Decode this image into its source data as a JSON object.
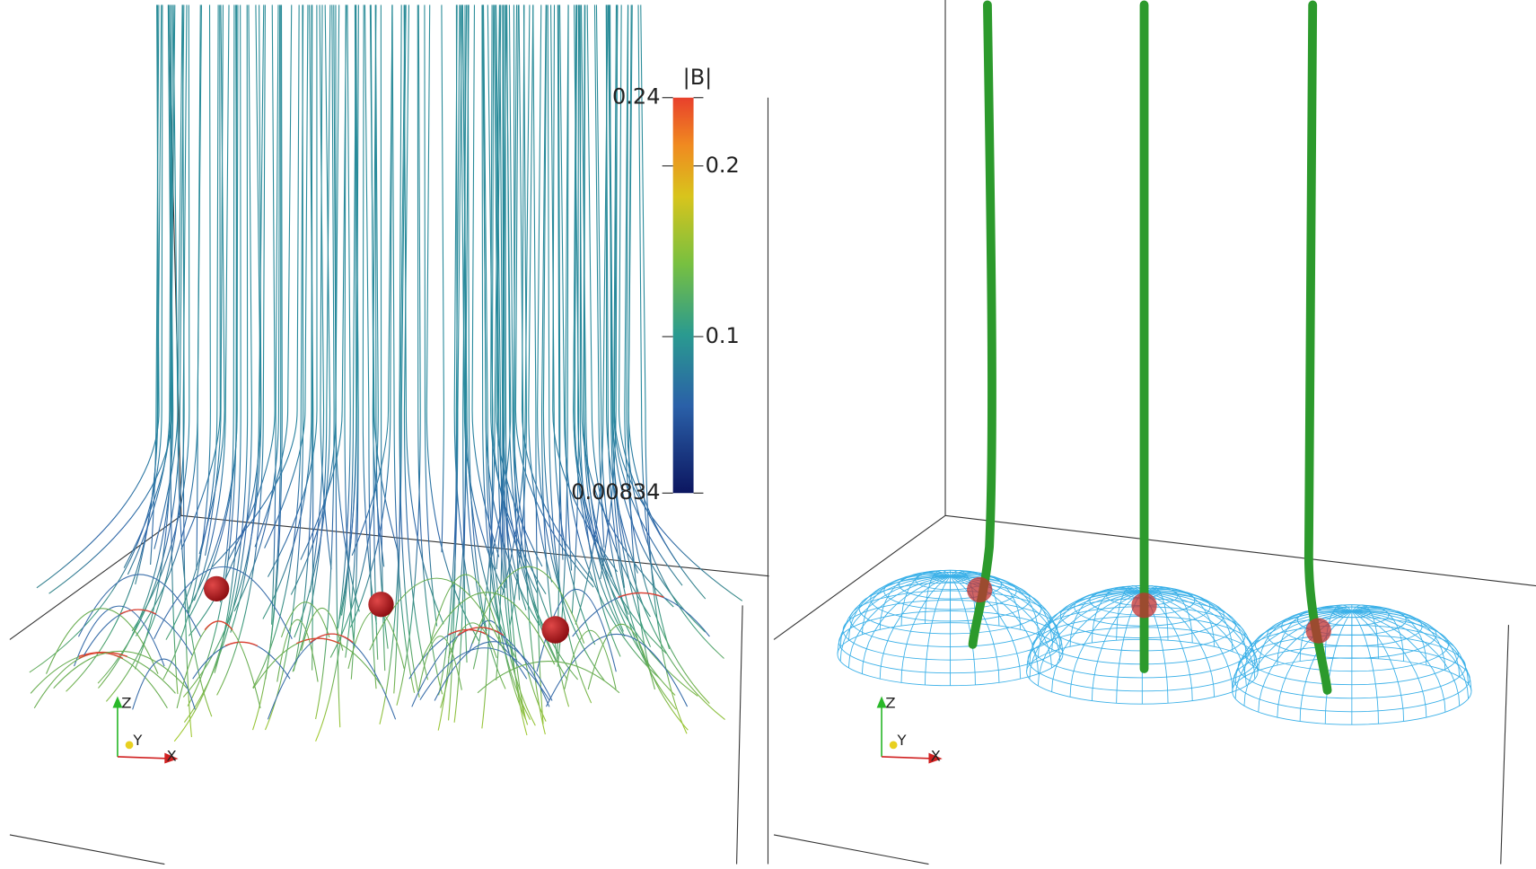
{
  "left_panel": {
    "color_legend": {
      "title": "|B|",
      "range": [
        0.00834,
        0.24
      ],
      "ticks": [
        0.24,
        0.2,
        0.1,
        0.00834
      ]
    },
    "axes": {
      "z": "Z",
      "y": "Y",
      "x": "X"
    }
  },
  "right_panel": {
    "axes": {
      "z": "Z",
      "y": "Y",
      "x": "X"
    }
  }
}
